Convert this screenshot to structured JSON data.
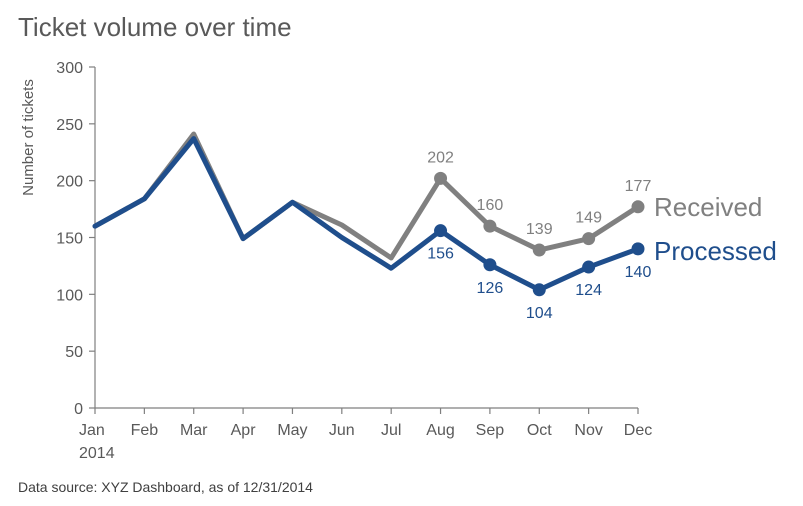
{
  "chart_title": "Ticket volume over time",
  "source_note": "Data source: XYZ Dashboard, as of 12/31/2014",
  "colors": {
    "received": "#808080",
    "processed": "#1f4e8c",
    "axis": "#7f7f7f",
    "text": "#595959"
  },
  "chart_data": {
    "type": "line",
    "title": "Ticket volume over time",
    "xlabel": "",
    "ylabel": "Number of tickets",
    "categories": [
      "Jan",
      "Feb",
      "Mar",
      "Apr",
      "May",
      "Jun",
      "Jul",
      "Aug",
      "Sep",
      "Oct",
      "Nov",
      "Dec"
    ],
    "year_label": "2014",
    "ylim": [
      0,
      300
    ],
    "yticks": [
      0,
      50,
      100,
      150,
      200,
      250,
      300
    ],
    "grid": false,
    "series": [
      {
        "name": "Received",
        "color": "#808080",
        "values": [
          160,
          184,
          241,
          149,
          181,
          161,
          132,
          202,
          160,
          139,
          149,
          177
        ],
        "labeled_from": 7
      },
      {
        "name": "Processed",
        "color": "#1f4e8c",
        "values": [
          160,
          184,
          237,
          149,
          181,
          150,
          123,
          156,
          126,
          104,
          124,
          140
        ],
        "labeled_from": 7
      }
    ]
  }
}
